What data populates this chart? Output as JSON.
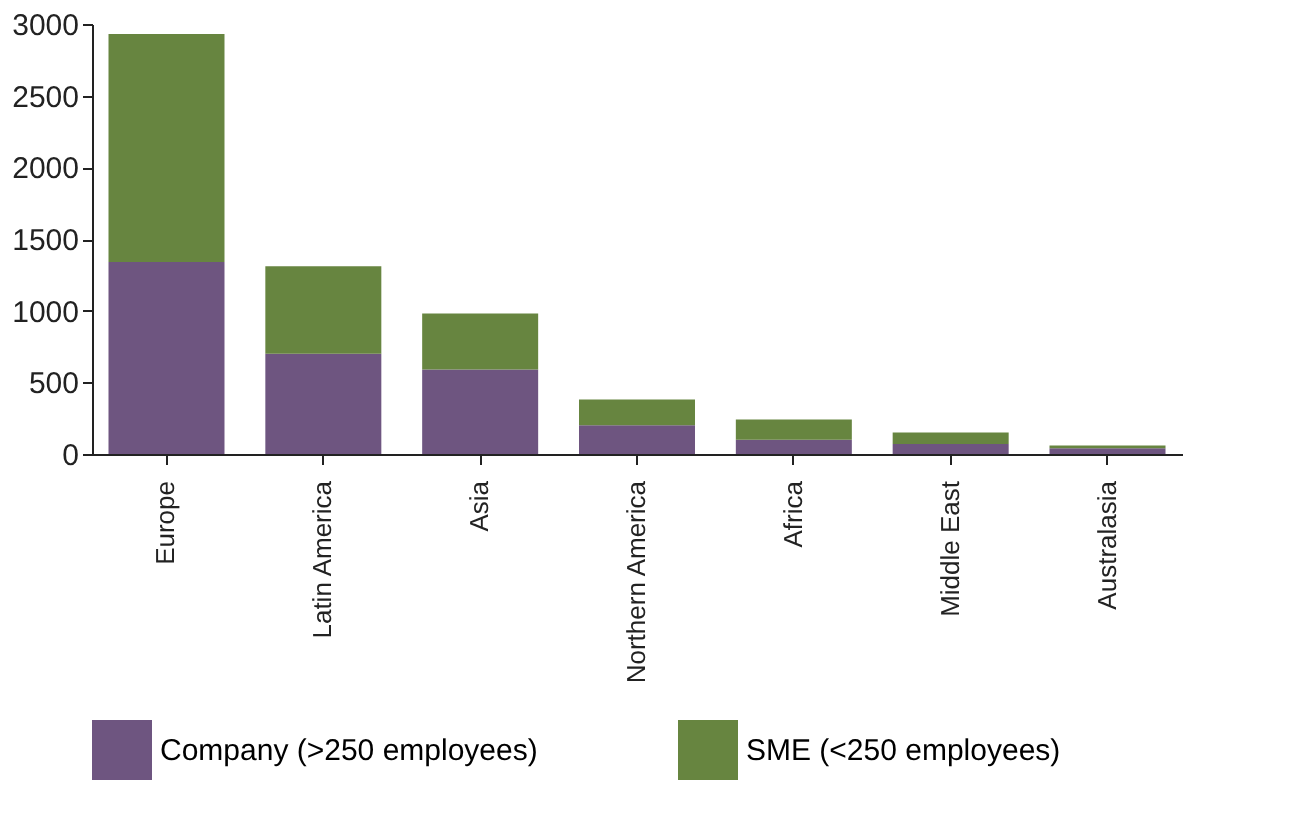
{
  "chart_data": {
    "type": "bar",
    "stacked": true,
    "categories": [
      "Europe",
      "Latin America",
      "Asia",
      "Northern America",
      "Africa",
      "Middle East",
      "Australasia"
    ],
    "series": [
      {
        "name": "Company (>250 employees)",
        "color": "#6e5580",
        "values": [
          1340,
          700,
          590,
          200,
          100,
          70,
          40
        ]
      },
      {
        "name": "SME (<250 employees)",
        "color": "#678540",
        "values": [
          1590,
          610,
          390,
          180,
          140,
          80,
          20
        ]
      }
    ],
    "ylim": [
      0,
      3000
    ],
    "yticks": [
      0,
      500,
      1000,
      1500,
      2000,
      2500,
      3000
    ],
    "grid": false,
    "legend": "bottom"
  }
}
